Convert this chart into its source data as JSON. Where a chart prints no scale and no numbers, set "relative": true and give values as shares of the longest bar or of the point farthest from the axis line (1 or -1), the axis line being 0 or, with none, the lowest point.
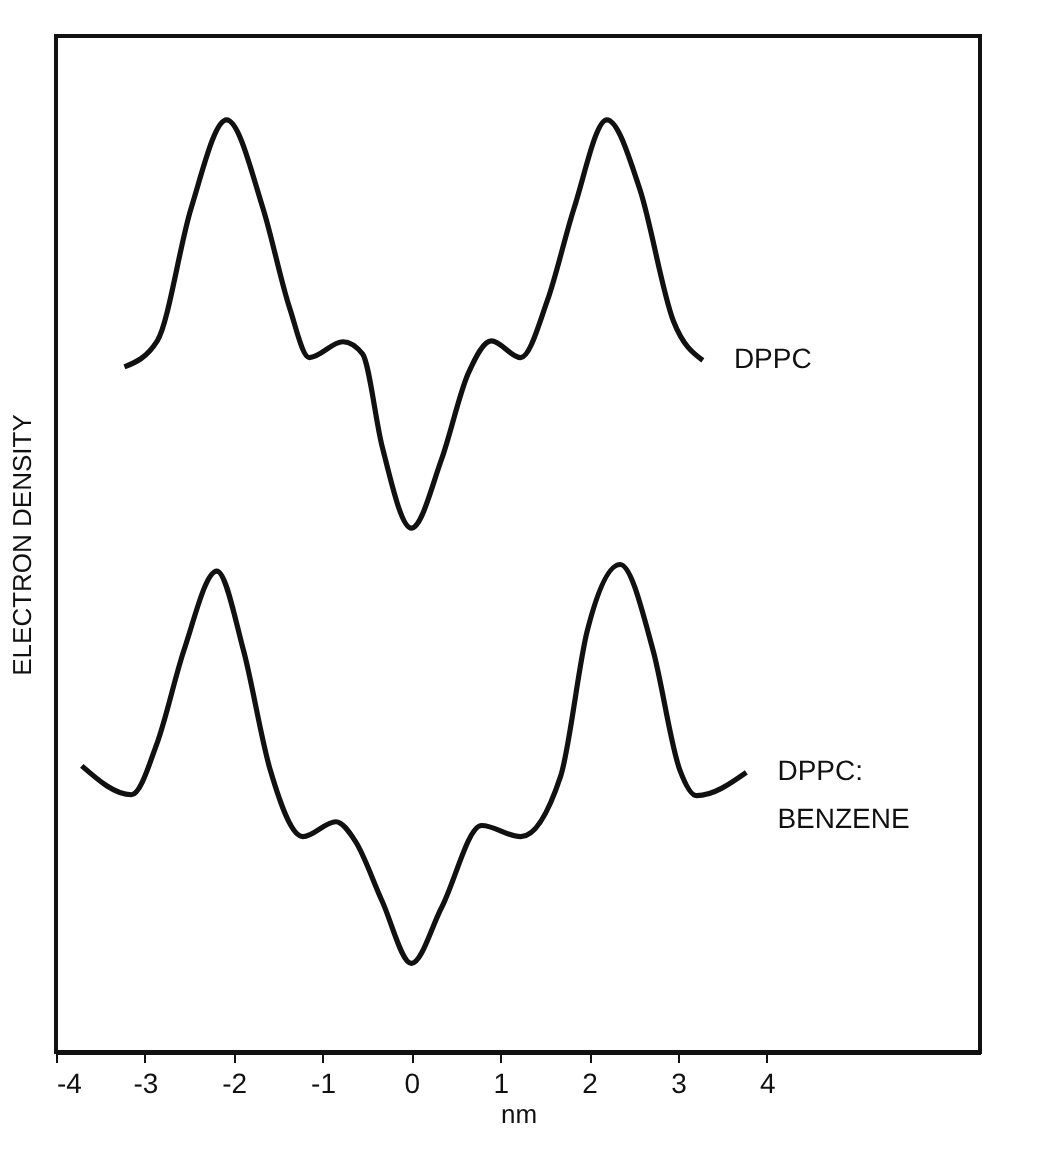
{
  "chart_data": {
    "type": "line",
    "xlabel": "nm",
    "ylabel": "ELECTRON DENSITY",
    "relative": true,
    "xlim": [
      -4,
      6.4
    ],
    "xticks": [
      -4,
      -3,
      -2,
      -1,
      0,
      1,
      2,
      3,
      4
    ],
    "grid": false,
    "legend": false,
    "marker": "none",
    "line_style": "solid",
    "series": [
      {
        "name": "DPPC",
        "color": "#111111",
        "x": [
          -3.23,
          -2.86,
          -2.48,
          -2.08,
          -1.67,
          -1.37,
          -1.15,
          -0.77,
          -0.55,
          -0.33,
          0.0,
          0.34,
          0.64,
          0.9,
          1.23,
          1.53,
          1.83,
          2.2,
          2.57,
          2.95,
          3.28
        ],
        "values": [
          0.735,
          0.763,
          0.905,
          1.0,
          0.905,
          0.798,
          0.745,
          0.762,
          0.749,
          0.65,
          0.562,
          0.636,
          0.728,
          0.763,
          0.745,
          0.806,
          0.905,
          1.0,
          0.926,
          0.784,
          0.742
        ]
      },
      {
        "name": "DPPC: BENZENE",
        "color": "#111111",
        "x": [
          -3.71,
          -3.15,
          -2.86,
          -2.56,
          -2.19,
          -1.89,
          -1.59,
          -1.22,
          -0.85,
          -0.63,
          -0.33,
          0.0,
          0.34,
          0.79,
          1.23,
          1.68,
          1.98,
          2.35,
          2.72,
          3.02,
          3.21,
          3.77
        ],
        "values": [
          0.307,
          0.276,
          0.332,
          0.431,
          0.516,
          0.431,
          0.303,
          0.231,
          0.247,
          0.226,
          0.162,
          0.095,
          0.155,
          0.243,
          0.231,
          0.296,
          0.452,
          0.523,
          0.431,
          0.303,
          0.275,
          0.3
        ]
      }
    ]
  }
}
